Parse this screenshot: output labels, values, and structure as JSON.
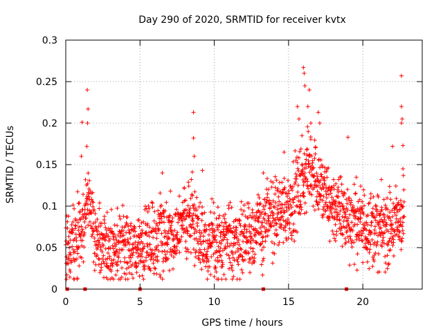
{
  "chart_data": {
    "type": "scatter",
    "title": "Day 290 of 2020, SRMTID for receiver kvtx",
    "xlabel": "GPS time / hours",
    "ylabel": "SRMTID / TECUs",
    "xlim": [
      0,
      24
    ],
    "ylim": [
      0,
      0.3
    ],
    "x_ticks": [
      0,
      5,
      10,
      15,
      20
    ],
    "y_ticks": [
      0,
      0.05,
      0.1,
      0.15,
      0.2,
      0.25,
      0.3
    ],
    "x_tick_labels": [
      "0",
      "5",
      "10",
      "15",
      "20"
    ],
    "y_tick_labels": [
      "0",
      "0.05",
      "0.1",
      "0.15",
      "0.2",
      "0.25",
      "0.3"
    ],
    "grid": true,
    "marker": "+",
    "marker_color": "#ff0000",
    "series": [
      {
        "name": "SRMTID",
        "profile": [
          [
            0.0,
            0.045
          ],
          [
            0.5,
            0.06
          ],
          [
            1.0,
            0.07
          ],
          [
            1.3,
            0.1
          ],
          [
            1.6,
            0.12
          ],
          [
            2.0,
            0.06
          ],
          [
            3.0,
            0.05
          ],
          [
            4.0,
            0.05
          ],
          [
            5.0,
            0.05
          ],
          [
            6.0,
            0.06
          ],
          [
            7.0,
            0.065
          ],
          [
            8.0,
            0.08
          ],
          [
            8.5,
            0.09
          ],
          [
            9.0,
            0.07
          ],
          [
            9.5,
            0.055
          ],
          [
            10.5,
            0.05
          ],
          [
            11.5,
            0.06
          ],
          [
            12.5,
            0.07
          ],
          [
            13.2,
            0.075
          ],
          [
            14.0,
            0.09
          ],
          [
            15.0,
            0.1
          ],
          [
            16.0,
            0.13
          ],
          [
            16.5,
            0.15
          ],
          [
            17.0,
            0.13
          ],
          [
            17.5,
            0.11
          ],
          [
            18.0,
            0.1
          ],
          [
            19.0,
            0.085
          ],
          [
            20.0,
            0.08
          ],
          [
            21.0,
            0.07
          ],
          [
            22.0,
            0.075
          ],
          [
            22.8,
            0.09
          ]
        ],
        "spread": 0.022,
        "sample_step_hours": 0.012,
        "points": [
          [
            1.45,
            0.24
          ],
          [
            1.5,
            0.217
          ],
          [
            1.47,
            0.2
          ],
          [
            1.42,
            0.172
          ],
          [
            1.1,
            0.201
          ],
          [
            1.05,
            0.16
          ],
          [
            8.6,
            0.213
          ],
          [
            8.6,
            0.182
          ],
          [
            8.65,
            0.16
          ],
          [
            16.0,
            0.267
          ],
          [
            16.05,
            0.26
          ],
          [
            16.1,
            0.245
          ],
          [
            16.4,
            0.24
          ],
          [
            16.3,
            0.22
          ],
          [
            15.6,
            0.22
          ],
          [
            16.5,
            0.2
          ],
          [
            15.7,
            0.205
          ],
          [
            15.9,
            0.185
          ],
          [
            17.0,
            0.213
          ],
          [
            17.1,
            0.2
          ],
          [
            14.7,
            0.165
          ],
          [
            19.0,
            0.183
          ],
          [
            22.6,
            0.257
          ],
          [
            22.6,
            0.22
          ],
          [
            22.65,
            0.205
          ],
          [
            22.6,
            0.2
          ],
          [
            22.7,
            0.173
          ],
          [
            22.0,
            0.172
          ],
          [
            22.7,
            0.145
          ],
          [
            6.5,
            0.14
          ],
          [
            9.2,
            0.143
          ],
          [
            13.3,
            0.14
          ],
          [
            13.25,
            0.017
          ],
          [
            10.0,
            0.015
          ],
          [
            2.3,
            0.02
          ],
          [
            12.4,
            0.02
          ],
          [
            20.0,
            0.032
          ],
          [
            0.9,
            0.028
          ]
        ]
      }
    ],
    "baseline_markers_x": [
      0.1,
      1.3,
      5.0,
      13.3,
      18.9
    ]
  }
}
